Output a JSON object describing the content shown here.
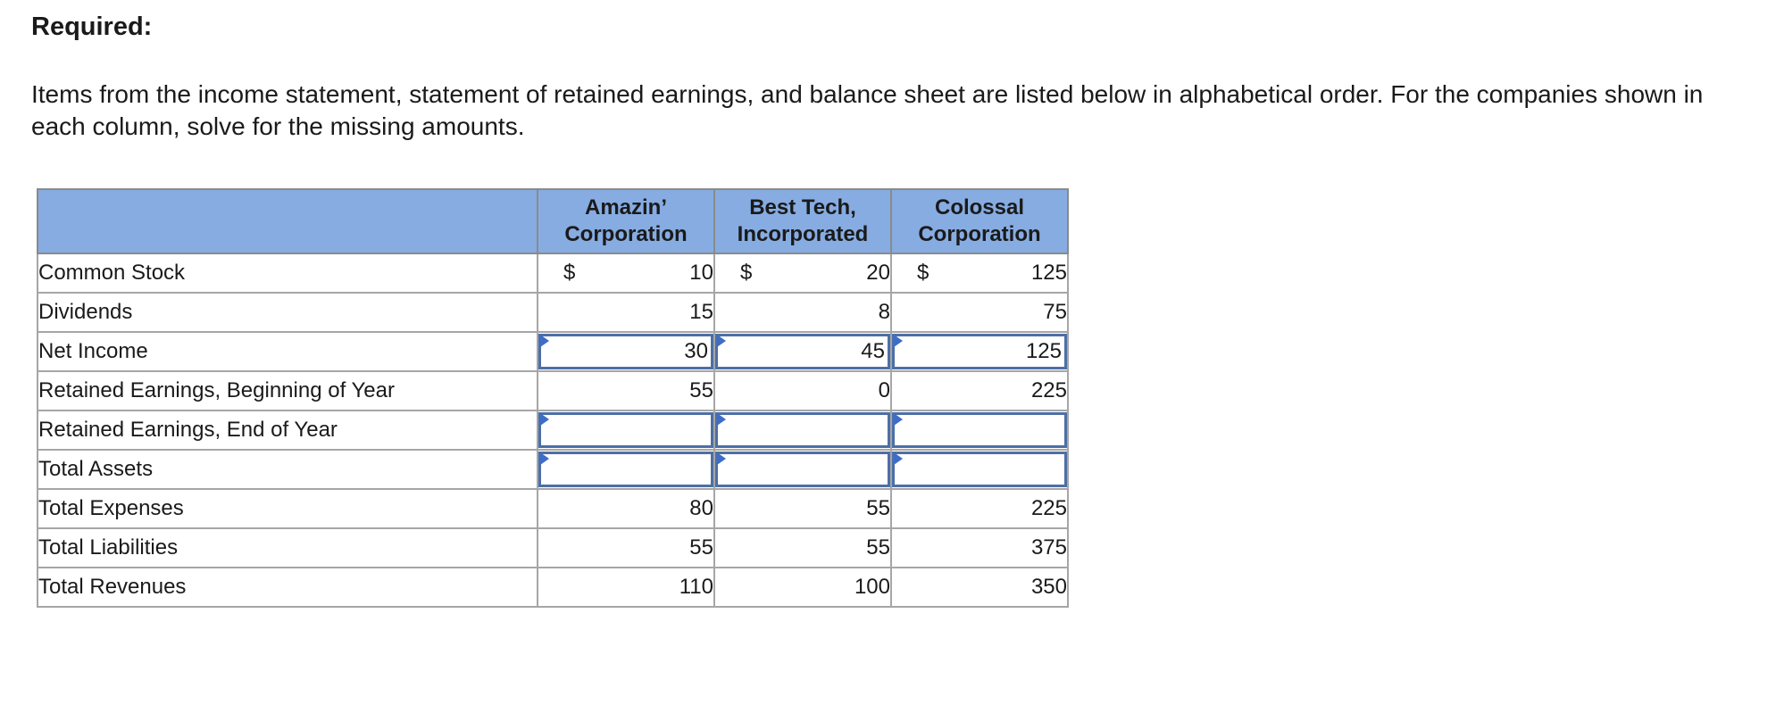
{
  "heading": "Required:",
  "instructions": "Items from the income statement, statement of retained earnings, and balance sheet are listed below in alphabetical order. For the companies shown in each column, solve for the missing amounts.",
  "table": {
    "columns": [
      {
        "line1": "Amazin’",
        "line2": "Corporation"
      },
      {
        "line1": "Best Tech,",
        "line2": "Incorporated"
      },
      {
        "line1": "Colossal",
        "line2": "Corporation"
      }
    ],
    "currency_symbol": "$",
    "rows": [
      {
        "label": "Common Stock",
        "values": [
          "10",
          "20",
          "125"
        ]
      },
      {
        "label": "Dividends",
        "values": [
          "15",
          "8",
          "75"
        ]
      },
      {
        "label": "Net Income",
        "values": [
          "30",
          "45",
          "125"
        ]
      },
      {
        "label": "Retained Earnings, Beginning of Year",
        "values": [
          "55",
          "0",
          "225"
        ]
      },
      {
        "label": "Retained Earnings, End of Year",
        "values": [
          "",
          "",
          ""
        ]
      },
      {
        "label": "Total Assets",
        "values": [
          "",
          "",
          ""
        ]
      },
      {
        "label": "Total Expenses",
        "values": [
          "80",
          "55",
          "225"
        ]
      },
      {
        "label": "Total Liabilities",
        "values": [
          "55",
          "55",
          "375"
        ]
      },
      {
        "label": "Total Revenues",
        "values": [
          "110",
          "100",
          "350"
        ]
      }
    ]
  },
  "colors": {
    "header_background": "#86ace2",
    "input_border": "#4c6fa6",
    "input_marker": "#3d6dc7"
  }
}
